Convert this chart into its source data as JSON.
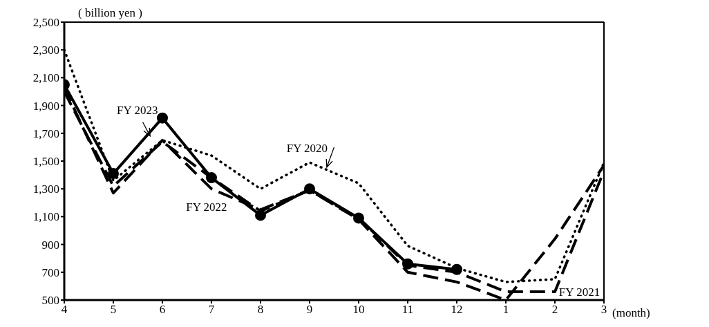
{
  "chart_data": {
    "type": "line",
    "ylabel": "( billion yen )",
    "xlabel": "(month)",
    "categories": [
      "4",
      "5",
      "6",
      "7",
      "8",
      "9",
      "10",
      "11",
      "12",
      "1",
      "2",
      "3"
    ],
    "series": [
      {
        "name": "FY 2020",
        "color": "#000000",
        "line_style": "dotted",
        "marker": "none",
        "values": [
          2300,
          1360,
          1650,
          1540,
          1300,
          1490,
          1340,
          890,
          730,
          630,
          650,
          1490
        ]
      },
      {
        "name": "FY 2021",
        "color": "#000000",
        "line_style": "dashed",
        "marker": "none",
        "values": [
          2000,
          1320,
          1640,
          1380,
          1140,
          1290,
          1090,
          750,
          700,
          560,
          560,
          1430
        ]
      },
      {
        "name": "FY 2022",
        "color": "#000000",
        "line_style": "dashed",
        "marker": "none",
        "values": [
          2030,
          1270,
          1650,
          1300,
          1150,
          1290,
          1080,
          700,
          630,
          500,
          940,
          1470
        ]
      },
      {
        "name": "FY 2023",
        "color": "#000000",
        "line_style": "solid",
        "marker": "circle",
        "values": [
          2050,
          1410,
          1810,
          1380,
          1110,
          1300,
          1090,
          760,
          720,
          null,
          null,
          null
        ]
      }
    ],
    "ylim": [
      500,
      2500
    ],
    "yticks": [
      500,
      700,
      900,
      {
        "value": 1100,
        "label": "1,100"
      },
      {
        "value": 1300,
        "label": "1,300"
      },
      {
        "value": 1500,
        "label": "1,500"
      },
      {
        "value": 1700,
        "label": "1,700"
      },
      {
        "value": 1900,
        "label": "1,900"
      },
      {
        "value": 2100,
        "label": "2,100"
      },
      {
        "value": 2300,
        "label": "2,300"
      },
      {
        "value": 2500,
        "label": "2,500"
      }
    ],
    "grid": false,
    "legend": false
  }
}
